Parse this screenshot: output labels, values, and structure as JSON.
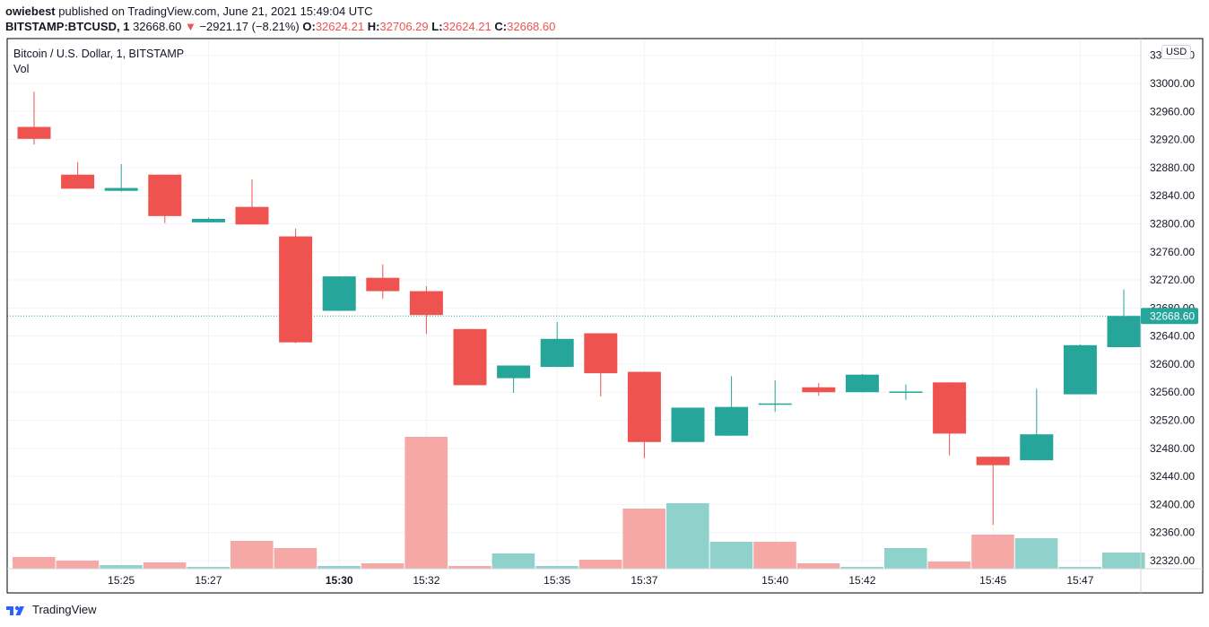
{
  "header": {
    "publisher": "owiebest",
    "published_text": " published on TradingView.com, June 21, 2021 15:49:04 UTC",
    "symbol": "BITSTAMP:BTCUSD",
    "interval": ", 1",
    "last": "32668.60",
    "change": "−2921.17 (−8.21%)",
    "o_label": "O:",
    "o_value": "32624.21",
    "h_label": "H:",
    "h_value": "32706.29",
    "l_label": "L:",
    "l_value": "32624.21",
    "c_label": "C:",
    "c_value": "32668.60"
  },
  "legend": {
    "title": "Bitcoin / U.S. Dollar, 1, BITSTAMP",
    "volume_label": "Vol"
  },
  "axis": {
    "currency": "USD",
    "last_price_label": "32668.60"
  },
  "footer": {
    "brand": "TradingView"
  },
  "colors": {
    "up": "#26a69a",
    "down": "#ef5350",
    "volume_up": "#8fd2cb",
    "volume_down": "#f6a8a7",
    "grid": "#f0f3fa",
    "text": "#131722"
  },
  "chart_data": {
    "type": "candlestick",
    "y_range": [
      32300,
      33020
    ],
    "y_ticks": [
      32320,
      32360,
      32400,
      32440,
      32480,
      32520,
      32560,
      32600,
      32640,
      32680,
      32720,
      32760,
      32800,
      32840,
      32880,
      32920,
      32960,
      33000,
      33040
    ],
    "y_tick_labels": [
      "32320.00",
      "32360.00",
      "32400.00",
      "32440.00",
      "32480.00",
      "32520.00",
      "32560.00",
      "32600.00",
      "32640.00",
      "32680.00",
      "32720.00",
      "32760.00",
      "32800.00",
      "32840.00",
      "32880.00",
      "32920.00",
      "32960.00",
      "33000.00",
      "33040.00"
    ],
    "x_labels": [
      {
        "index": 2,
        "label": "15:25",
        "bold": false
      },
      {
        "index": 4,
        "label": "15:27",
        "bold": false
      },
      {
        "index": 7,
        "label": "15:30",
        "bold": true
      },
      {
        "index": 9,
        "label": "15:32",
        "bold": false
      },
      {
        "index": 12,
        "label": "15:35",
        "bold": false
      },
      {
        "index": 14,
        "label": "15:37",
        "bold": false
      },
      {
        "index": 17,
        "label": "15:40",
        "bold": false
      },
      {
        "index": 19,
        "label": "15:42",
        "bold": false
      },
      {
        "index": 22,
        "label": "15:45",
        "bold": false
      },
      {
        "index": 24,
        "label": "15:47",
        "bold": false
      }
    ],
    "candles": [
      {
        "o": 32938,
        "h": 32988,
        "l": 32913,
        "c": 32921
      },
      {
        "o": 32870,
        "h": 32888,
        "l": 32850,
        "c": 32850
      },
      {
        "o": 32847,
        "h": 32885,
        "l": 32846,
        "c": 32851
      },
      {
        "o": 32870,
        "h": 32870,
        "l": 32801,
        "c": 32811
      },
      {
        "o": 32802,
        "h": 32809,
        "l": 32802,
        "c": 32807
      },
      {
        "o": 32824,
        "h": 32863,
        "l": 32799,
        "c": 32799
      },
      {
        "o": 32782,
        "h": 32793,
        "l": 32630,
        "c": 32631
      },
      {
        "o": 32676,
        "h": 32725,
        "l": 32676,
        "c": 32725
      },
      {
        "o": 32723,
        "h": 32742,
        "l": 32693,
        "c": 32704
      },
      {
        "o": 32704,
        "h": 32711,
        "l": 32643,
        "c": 32670
      },
      {
        "o": 32650,
        "h": 32650,
        "l": 32570,
        "c": 32570
      },
      {
        "o": 32580,
        "h": 32598,
        "l": 32559,
        "c": 32598
      },
      {
        "o": 32596,
        "h": 32660,
        "l": 32596,
        "c": 32636
      },
      {
        "o": 32644,
        "h": 32644,
        "l": 32554,
        "c": 32587
      },
      {
        "o": 32589,
        "h": 32589,
        "l": 32466,
        "c": 32489
      },
      {
        "o": 32489,
        "h": 32538,
        "l": 32489,
        "c": 32538
      },
      {
        "o": 32498,
        "h": 32583,
        "l": 32498,
        "c": 32539
      },
      {
        "o": 32544,
        "h": 32577,
        "l": 32532,
        "c": 32544
      },
      {
        "o": 32567,
        "h": 32573,
        "l": 32555,
        "c": 32560
      },
      {
        "o": 32560,
        "h": 32586,
        "l": 32560,
        "c": 32585
      },
      {
        "o": 32561,
        "h": 32571,
        "l": 32549,
        "c": 32561
      },
      {
        "o": 32574,
        "h": 32574,
        "l": 32470,
        "c": 32501
      },
      {
        "o": 32468,
        "h": 32468,
        "l": 32371,
        "c": 32456
      },
      {
        "o": 32463,
        "h": 32565,
        "l": 32463,
        "c": 32500
      },
      {
        "o": 32557,
        "h": 32628,
        "l": 32557,
        "c": 32627
      },
      {
        "o": 32624.21,
        "h": 32706.29,
        "l": 32624.21,
        "c": 32668.6
      }
    ],
    "volumes": [
      13,
      9,
      4,
      7,
      2,
      31,
      23,
      3,
      6,
      147,
      3,
      17,
      3,
      10,
      67,
      73,
      30,
      30,
      6,
      2,
      23,
      8,
      38,
      34,
      2,
      18
    ],
    "volume_dir": [
      "down",
      "down",
      "up",
      "down",
      "up",
      "down",
      "down",
      "up",
      "down",
      "down",
      "down",
      "up",
      "up",
      "down",
      "down",
      "up",
      "up",
      "down",
      "down",
      "up",
      "up",
      "down",
      "down",
      "up",
      "up",
      "up"
    ]
  }
}
